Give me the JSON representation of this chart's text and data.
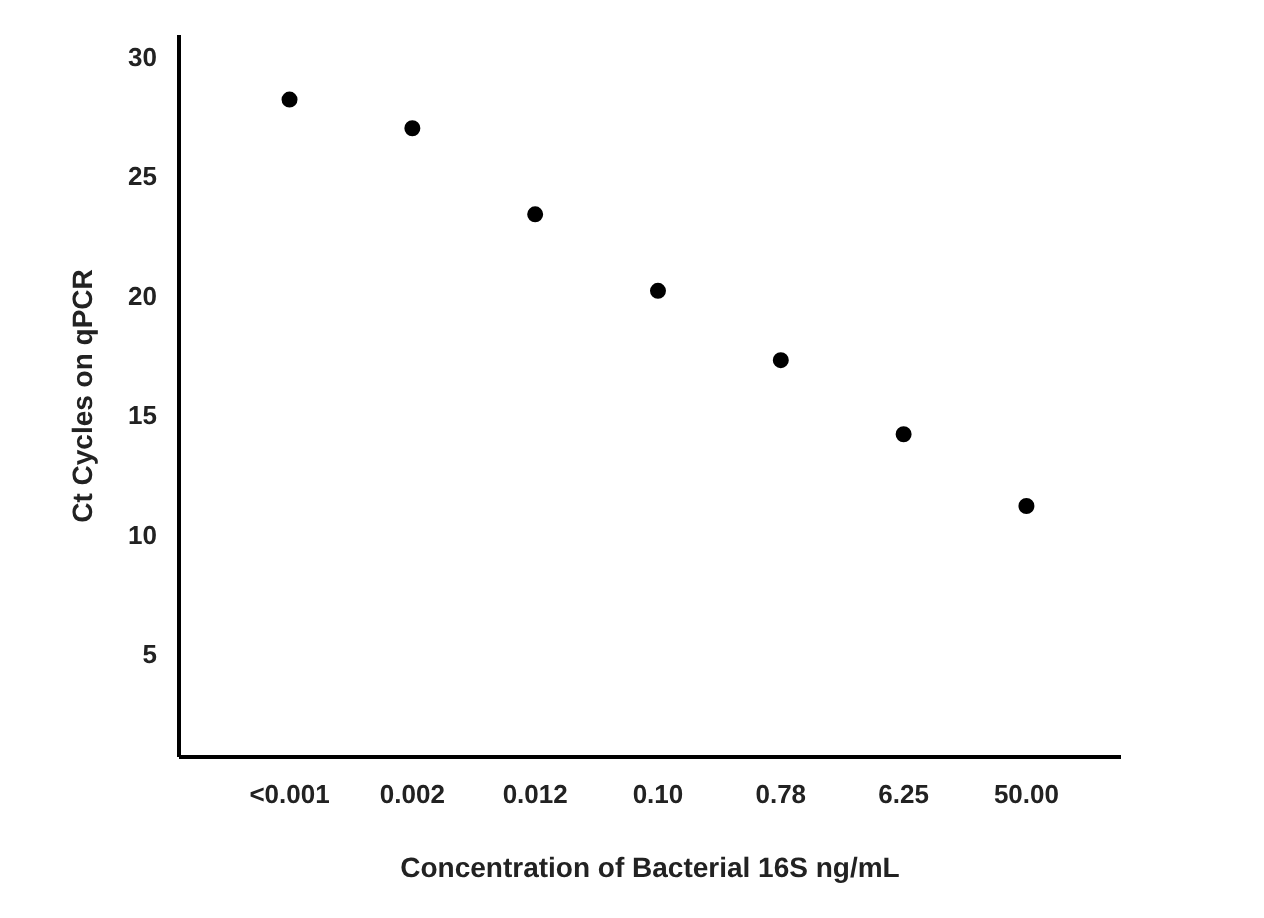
{
  "chart_data": {
    "type": "scatter",
    "xlabel": "Concentration of Bacterial 16S ng/mL",
    "ylabel": "Ct Cycles on qPCR",
    "categories": [
      "<0.001",
      "0.002",
      "0.012",
      "0.10",
      "0.78",
      "6.25",
      "50.00"
    ],
    "series": [
      {
        "color": "#000000",
        "values": [
          28.2,
          27.0,
          23.4,
          20.2,
          17.3,
          14.2,
          11.2
        ]
      }
    ],
    "ylim": [
      0.7,
      30.9
    ],
    "yticks": [
      5,
      10,
      15,
      20,
      25,
      30
    ],
    "grid": false,
    "marker": "circle"
  }
}
